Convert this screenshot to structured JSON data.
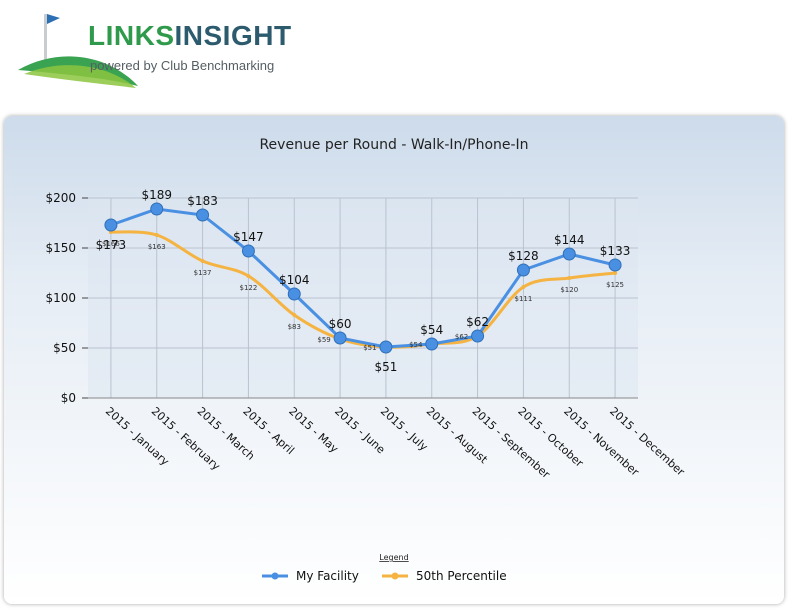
{
  "brand": {
    "title_part1": "LINKS",
    "title_part2": "INSIGHT",
    "subtitle": "powered by Club Benchmarking"
  },
  "chart_data": {
    "type": "line",
    "title": "Revenue per Round - Walk-In/Phone-In",
    "xlabel": "",
    "ylabel": "",
    "categories": [
      "2015 - January",
      "2015 - February",
      "2015 - March",
      "2015 - April",
      "2015 - May",
      "2015 - June",
      "2015 - July",
      "2015 - August",
      "2015 - September",
      "2015 - October",
      "2015 - November",
      "2015 - December"
    ],
    "ylim": [
      0,
      200
    ],
    "yticks": [
      "$0",
      "$50",
      "$100",
      "$150",
      "$200"
    ],
    "grid": true,
    "legend_title": "Legend",
    "legend_position": "bottom",
    "series": [
      {
        "name": "My Facility",
        "color": "#4a90e2",
        "values": [
          173,
          189,
          183,
          147,
          104,
          60,
          51,
          54,
          62,
          128,
          144,
          133
        ],
        "labels": [
          "$173",
          "$189",
          "$183",
          "$147",
          "$104",
          "$60",
          "$51",
          "$54",
          "$62",
          "$128",
          "$144",
          "$133"
        ]
      },
      {
        "name": "50th Percentile",
        "color": "#f5b342",
        "values": [
          166,
          163,
          137,
          122,
          83,
          59,
          51,
          54,
          62,
          111,
          120,
          125
        ],
        "labels": [
          "$166",
          "$163",
          "$137",
          "$122",
          "$83",
          "$59",
          "$51",
          "$54",
          "$62",
          "$111",
          "$120",
          "$125"
        ]
      }
    ]
  }
}
